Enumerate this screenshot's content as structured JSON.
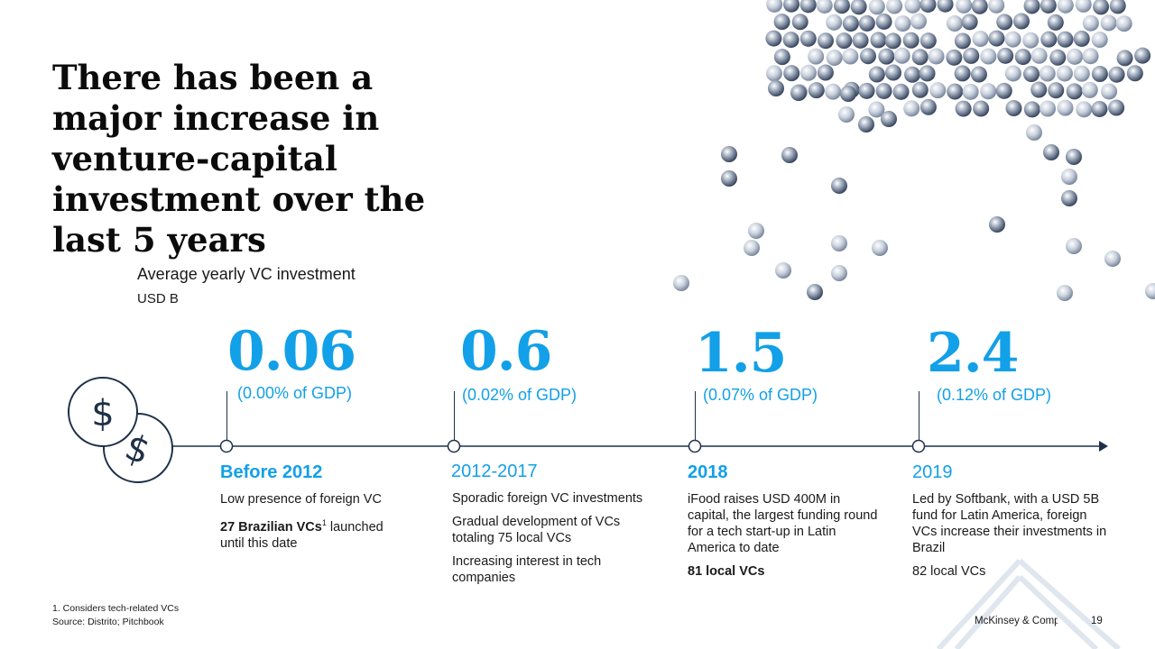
{
  "slide": {
    "title": "There has been a major increase in venture-capital investment over the last 5 years",
    "chart_title": "Average yearly VC investment",
    "chart_unit": "USD B",
    "footnote": "1. Considers tech-related VCs",
    "source": "Source: Distrito; Pitchbook",
    "brand": "McKinsey & Company",
    "page_number": "19"
  },
  "timeline": [
    {
      "value": "0.06",
      "gdp": "(0.00% of GDP)",
      "period": "Before 2012",
      "p1": "Low presence of foreign VC",
      "p2_bold": "27 Brazilian VCs",
      "p2_sup": "1",
      "p2_rest": " launched until this date"
    },
    {
      "value": "0.6",
      "gdp": "(0.02% of GDP)",
      "period": "2012-2017",
      "p1": "Sporadic foreign VC investments",
      "p2": "Gradual development of VCs totaling 75 local VCs",
      "p3": "Increasing interest in tech companies"
    },
    {
      "value": "1.5",
      "gdp": "(0.07% of GDP)",
      "period": "2018",
      "p1": "iFood raises USD 400M in capital, the largest funding round for a tech start-up in Latin America to date",
      "p2_bold": "81 local VCs"
    },
    {
      "value": "2.4",
      "gdp": "(0.12% of GDP)",
      "period": "2019",
      "p1": "Led by Softbank, with a USD 5B fund for Latin America, foreign VCs increase their investments in Brazil",
      "p2": "82 local VCs"
    }
  ],
  "colors": {
    "accent": "#12a0e8",
    "dark_navy": "#1e3048",
    "text": "#1a1a1a"
  },
  "icons": {
    "coins": "dollar-coins-icon",
    "decor": "spheres-decoration"
  }
}
